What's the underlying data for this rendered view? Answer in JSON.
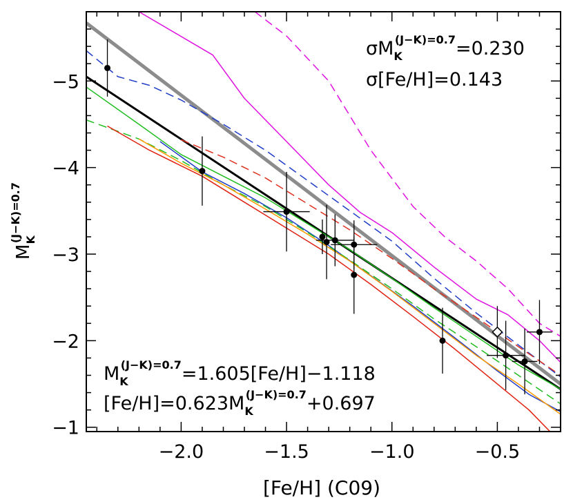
{
  "chart_data": {
    "type": "scatter",
    "title": "",
    "xlabel": "[Fe/H] (C09)",
    "ylabel": {
      "base": "M",
      "sup": "(J−K)=0.7",
      "sub": "K"
    },
    "xlim": [
      -2.45,
      -0.2
    ],
    "ylim": [
      -0.95,
      -5.8
    ],
    "x_ticks": [
      -2.0,
      -1.5,
      -1.0,
      -0.5
    ],
    "x_tick_labels": [
      "−2.0",
      "−1.5",
      "−1.0",
      "−0.5"
    ],
    "y_ticks": [
      -5,
      -4,
      -3,
      -2,
      -1
    ],
    "y_tick_labels": [
      "−5",
      "−4",
      "−3",
      "−2",
      "−1"
    ],
    "points": [
      {
        "x": -2.35,
        "y": -5.15,
        "xerr": 0.0,
        "yerr": 0.33
      },
      {
        "x": -1.9,
        "y": -3.96,
        "xerr": 0.0,
        "yerr": 0.4
      },
      {
        "x": -1.5,
        "y": -3.49,
        "xerr": 0.11,
        "yerr": 0.46
      },
      {
        "x": -1.33,
        "y": -3.2,
        "xerr": 0.0,
        "yerr": 0.2
      },
      {
        "x": -1.31,
        "y": -3.14,
        "xerr": 0.0,
        "yerr": 0.43
      },
      {
        "x": -1.27,
        "y": -3.16,
        "xerr": 0.09,
        "yerr": 0.3
      },
      {
        "x": -1.18,
        "y": -3.11,
        "xerr": 0.11,
        "yerr": 0.28
      },
      {
        "x": -1.18,
        "y": -2.76,
        "xerr": 0.0,
        "yerr": 0.45
      },
      {
        "x": -0.76,
        "y": -2.0,
        "xerr": 0.0,
        "yerr": 0.38
      },
      {
        "x": -0.46,
        "y": -1.83,
        "xerr": 0.09,
        "yerr": 0.4
      },
      {
        "x": -0.37,
        "y": -1.76,
        "xerr": 0.06,
        "yerr": 0.38
      },
      {
        "x": -0.3,
        "y": -2.1,
        "xerr": 0.06,
        "yerr": 0.37
      }
    ],
    "open_points": [
      {
        "x": -0.5,
        "y": -2.1,
        "xerr": 0.0,
        "yerr": 0.3
      }
    ],
    "series": [
      {
        "name": "fit",
        "color": "#000000",
        "style": "solid",
        "width": 3,
        "x": [
          -2.45,
          -0.2
        ],
        "y": [
          -5.05,
          -1.44
        ]
      },
      {
        "name": "gray-relation",
        "color": "#8c8c8c",
        "style": "solid",
        "width": 5,
        "x": [
          -2.45,
          -0.2
        ],
        "y": [
          -5.67,
          -1.5
        ]
      },
      {
        "name": "magenta-solid",
        "color": "#e010e0",
        "style": "solid",
        "width": 1.5,
        "x": [
          -2.2,
          -1.85,
          -1.7,
          -1.5,
          -1.3,
          -1.15,
          -1.0,
          -0.8,
          -0.6,
          -0.45,
          -0.3,
          -0.2
        ],
        "y": [
          -5.8,
          -5.3,
          -4.8,
          -4.3,
          -3.8,
          -3.48,
          -3.25,
          -2.85,
          -2.48,
          -2.3,
          -2.0,
          -1.75
        ]
      },
      {
        "name": "magenta-dashed",
        "color": "#e010e0",
        "style": "dashed",
        "width": 1.5,
        "x": [
          -1.65,
          -1.5,
          -1.3,
          -1.1,
          -0.9,
          -0.75,
          -0.6,
          -0.45,
          -0.3,
          -0.2
        ],
        "y": [
          -5.8,
          -5.52,
          -5.0,
          -4.2,
          -3.55,
          -3.2,
          -2.92,
          -2.6,
          -2.2,
          -2.05
        ]
      },
      {
        "name": "blue-dashed",
        "color": "#1f3cc8",
        "style": "dashed",
        "width": 1.5,
        "x": [
          -2.45,
          -2.3,
          -2.15,
          -2.0,
          -1.8,
          -1.6,
          -1.4,
          -1.2,
          -1.0,
          -0.8,
          -0.6,
          -0.4,
          -0.2
        ],
        "y": [
          -5.35,
          -5.05,
          -4.95,
          -4.78,
          -4.5,
          -4.2,
          -3.85,
          -3.5,
          -3.15,
          -2.72,
          -2.32,
          -1.95,
          -1.58
        ]
      },
      {
        "name": "blue-solid",
        "color": "#1f3cc8",
        "style": "solid",
        "width": 1.5,
        "x": [
          -2.1,
          -1.9,
          -1.7,
          -1.5,
          -1.3,
          -1.1,
          -0.9,
          -0.7,
          -0.5,
          -0.35,
          -0.2
        ],
        "y": [
          -4.3,
          -3.95,
          -3.7,
          -3.42,
          -3.1,
          -2.75,
          -2.4,
          -2.03,
          -1.65,
          -1.38,
          -1.18
        ]
      },
      {
        "name": "green-solid",
        "color": "#1fbd1f",
        "style": "solid",
        "width": 1.5,
        "x": [
          -2.45,
          -2.2,
          -2.0,
          -1.8,
          -1.6,
          -1.4,
          -1.2,
          -1.0,
          -0.8,
          -0.6,
          -0.4,
          -0.2
        ],
        "y": [
          -4.93,
          -4.5,
          -4.15,
          -3.9,
          -3.65,
          -3.35,
          -3.05,
          -2.72,
          -2.38,
          -2.05,
          -1.72,
          -1.44
        ]
      },
      {
        "name": "green-dashed",
        "color": "#1fbd1f",
        "style": "dashed",
        "width": 1.5,
        "x": [
          -2.45,
          -2.2,
          -2.0,
          -1.8,
          -1.6,
          -1.4,
          -1.2,
          -1.0,
          -0.8,
          -0.6,
          -0.4,
          -0.2
        ],
        "y": [
          -4.55,
          -4.33,
          -4.08,
          -3.8,
          -3.55,
          -3.25,
          -2.93,
          -2.6,
          -2.25,
          -1.93,
          -1.6,
          -1.27
        ]
      },
      {
        "name": "red-dashed",
        "color": "#e03020",
        "style": "dashed",
        "width": 1.5,
        "x": [
          -2.0,
          -1.8,
          -1.6,
          -1.4,
          -1.2,
          -1.0,
          -0.8,
          -0.6,
          -0.4,
          -0.2
        ],
        "y": [
          -4.32,
          -4.12,
          -3.88,
          -3.58,
          -3.28,
          -2.95,
          -2.6,
          -2.27,
          -1.93,
          -1.6
        ]
      },
      {
        "name": "orange-solid",
        "color": "#ff9a00",
        "style": "solid",
        "width": 1.5,
        "x": [
          -2.2,
          -2.0,
          -1.8,
          -1.6,
          -1.4,
          -1.2,
          -1.0,
          -0.8,
          -0.6,
          -0.4,
          -0.2
        ],
        "y": [
          -4.33,
          -4.05,
          -3.8,
          -3.52,
          -3.23,
          -2.92,
          -2.57,
          -2.2,
          -1.83,
          -1.5,
          -1.15
        ]
      },
      {
        "name": "red-solid",
        "color": "#e02010",
        "style": "solid",
        "width": 1.5,
        "x": [
          -2.35,
          -2.15,
          -1.9,
          -1.7,
          -1.5,
          -1.3,
          -1.1,
          -0.9,
          -0.7,
          -0.5,
          -0.35,
          -0.25
        ],
        "y": [
          -4.48,
          -4.2,
          -3.9,
          -3.6,
          -3.3,
          -3.0,
          -2.65,
          -2.28,
          -1.9,
          -1.5,
          -1.2,
          -0.95
        ]
      }
    ],
    "annotations": {
      "sigma_mk": {
        "prefix": "σM",
        "sup": "(J−K)=0.7",
        "sub": "K",
        "suffix": "=0.230"
      },
      "sigma_feh": "σ[Fe/H]=0.143",
      "eq1": {
        "prefix": "M",
        "sup": "(J−K)=0.7",
        "sub": "K",
        "suffix": "=1.605[Fe/H]−1.118"
      },
      "eq2": {
        "prefix": "[Fe/H]=0.623M",
        "sup": "(J−K)=0.7",
        "sub": "K",
        "suffix": "+0.697"
      }
    }
  }
}
